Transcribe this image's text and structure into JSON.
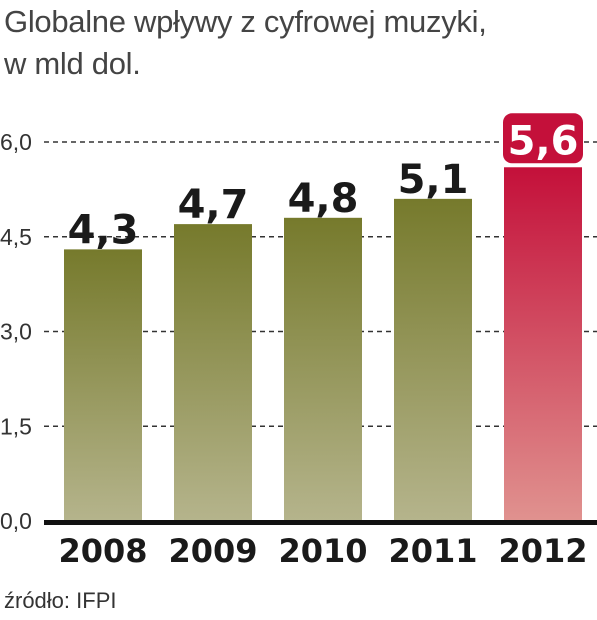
{
  "chart_data": {
    "type": "bar",
    "title": "Globalne wpływy z cyfrowej muzyki,",
    "subtitle": "w mld dol.",
    "categories": [
      "2008",
      "2009",
      "2010",
      "2011",
      "2012"
    ],
    "values": [
      4.3,
      4.7,
      4.8,
      5.1,
      5.6
    ],
    "value_labels": [
      "4,3",
      "4,7",
      "4,8",
      "5,1",
      "5,6"
    ],
    "y_ticks": [
      0,
      1.5,
      3.0,
      4.5,
      6.0
    ],
    "y_tick_labels": [
      "0,0",
      "1,5",
      "3,0",
      "4,5",
      "6,0"
    ],
    "ylim": [
      0,
      6.0
    ],
    "grid": true,
    "highlight_index": 4,
    "colors": {
      "bar_top": "#767a2c",
      "bar_bottom": "#b5b48c",
      "highlight_top": "#c4103a",
      "highlight_bottom": "#e0928f",
      "highlight_label_bg": "#c4103a",
      "grid": "#333333",
      "axis": "#111111"
    }
  },
  "source": "źródło: IFPI"
}
